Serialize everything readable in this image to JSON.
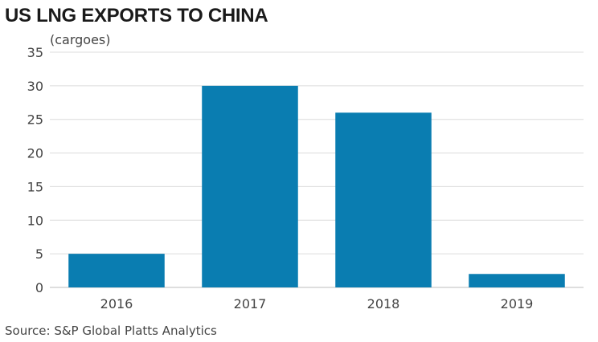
{
  "chart_data": {
    "type": "bar",
    "title": "US LNG EXPORTS TO CHINA",
    "ylabel": "(cargoes)",
    "xlabel": "",
    "categories": [
      "2016",
      "2017",
      "2018",
      "2019"
    ],
    "values": [
      5,
      30,
      26,
      2
    ],
    "ylim": [
      0,
      35
    ],
    "yticks": [
      0,
      5,
      10,
      15,
      20,
      25,
      30,
      35
    ],
    "grid": true,
    "legend": "none",
    "bar_color": "#0a7db1",
    "source": "Source: S&P Global Platts Analytics"
  }
}
